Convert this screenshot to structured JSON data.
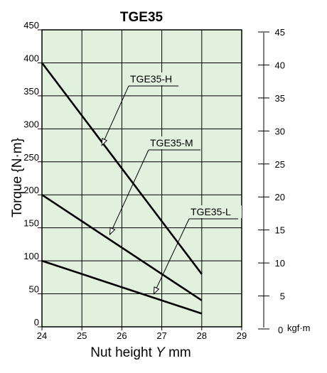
{
  "chart_data": {
    "type": "line",
    "title": "TGE35",
    "xlabel": "Nut height",
    "xlabel_var": "Y",
    "xlabel_unit": "mm",
    "ylabel": "Torque {N·m}",
    "y2_unit_label": "kgf·m",
    "xlim": [
      24,
      29
    ],
    "ylim": [
      0,
      450
    ],
    "x_ticks": [
      24,
      25,
      26,
      27,
      28,
      29
    ],
    "y_ticks": [
      0,
      50,
      100,
      150,
      200,
      250,
      300,
      350,
      400,
      450
    ],
    "y2_ticks": [
      0,
      5,
      10,
      15,
      20,
      25,
      30,
      35,
      40,
      45
    ],
    "grid": true,
    "plot_background": "#e2f0de",
    "line_color": "#000000",
    "series": [
      {
        "name": "TGE35-H",
        "x": [
          24,
          28
        ],
        "values": [
          400,
          80
        ]
      },
      {
        "name": "TGE35-M",
        "x": [
          24,
          28
        ],
        "values": [
          200,
          40
        ]
      },
      {
        "name": "TGE35-L",
        "x": [
          24,
          28
        ],
        "values": [
          100,
          20
        ]
      }
    ]
  }
}
